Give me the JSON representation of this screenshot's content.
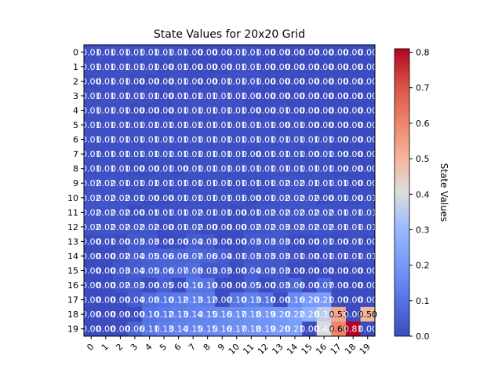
{
  "chart_data": {
    "type": "heatmap",
    "title": "State Values for 20x20 Grid",
    "xlabel": "",
    "ylabel": "",
    "x_categories": [
      "0",
      "1",
      "2",
      "3",
      "4",
      "5",
      "6",
      "7",
      "8",
      "9",
      "10",
      "11",
      "12",
      "13",
      "14",
      "15",
      "16",
      "17",
      "18",
      "19"
    ],
    "y_categories": [
      "0",
      "1",
      "2",
      "3",
      "4",
      "5",
      "6",
      "7",
      "8",
      "9",
      "10",
      "11",
      "12",
      "13",
      "14",
      "15",
      "16",
      "17",
      "18",
      "19"
    ],
    "colormap": "coolwarm",
    "vmin": 0.0,
    "vmax": 0.81,
    "colorbar_label": "State Values",
    "colorbar_ticks": [
      "0.0",
      "0.1",
      "0.2",
      "0.3",
      "0.4",
      "0.5",
      "0.6",
      "0.7",
      "0.8"
    ],
    "annotation_decimals": 2,
    "values": [
      [
        0.01,
        0.01,
        0.01,
        0.01,
        0.01,
        0.01,
        0.01,
        0.0,
        0.0,
        0.0,
        0.01,
        0.01,
        0.0,
        0.0,
        0.0,
        0.0,
        0.0,
        0.0,
        0.0,
        0.0
      ],
      [
        0.01,
        0.01,
        0.01,
        0.01,
        0.01,
        0.0,
        0.01,
        0.0,
        0.0,
        0.0,
        0.01,
        0.01,
        0.0,
        0.0,
        0.0,
        0.0,
        0.0,
        0.0,
        0.0,
        0.0
      ],
      [
        0.0,
        0.01,
        0.01,
        0.0,
        0.0,
        0.0,
        0.01,
        0.0,
        0.0,
        0.01,
        0.01,
        0.01,
        0.0,
        0.0,
        0.0,
        0.0,
        0.0,
        0.0,
        0.0,
        0.0
      ],
      [
        0.01,
        0.01,
        0.01,
        0.01,
        0.01,
        0.0,
        0.01,
        0.01,
        0.01,
        0.01,
        0.01,
        0.0,
        0.0,
        0.0,
        0.0,
        0.0,
        0.0,
        0.0,
        0.0,
        0.0
      ],
      [
        0.01,
        0.01,
        0.01,
        0.0,
        0.0,
        0.0,
        0.01,
        0.01,
        0.01,
        0.01,
        0.01,
        0.0,
        0.0,
        0.01,
        0.0,
        0.0,
        0.0,
        0.0,
        0.0,
        0.0
      ],
      [
        0.01,
        0.01,
        0.01,
        0.01,
        0.01,
        0.01,
        0.01,
        0.01,
        0.01,
        0.01,
        0.01,
        0.01,
        0.01,
        0.0,
        0.01,
        0.0,
        0.0,
        0.0,
        0.0,
        0.0
      ],
      [
        0.01,
        0.01,
        0.01,
        0.01,
        0.01,
        0.01,
        0.01,
        0.01,
        0.01,
        0.01,
        0.01,
        0.01,
        0.01,
        0.01,
        0.01,
        0.01,
        0.01,
        0.0,
        0.0,
        0.0
      ],
      [
        0.01,
        0.01,
        0.01,
        0.01,
        0.01,
        0.01,
        0.01,
        0.01,
        0.01,
        0.01,
        0.01,
        0.0,
        0.01,
        0.01,
        0.01,
        0.0,
        0.01,
        0.0,
        0.0,
        0.0
      ],
      [
        0.01,
        0.01,
        0.01,
        0.0,
        0.0,
        0.01,
        0.0,
        0.01,
        0.01,
        0.01,
        0.01,
        0.01,
        0.01,
        0.01,
        0.01,
        0.01,
        0.01,
        0.0,
        0.0,
        0.0
      ],
      [
        0.02,
        0.02,
        0.01,
        0.01,
        0.01,
        0.01,
        0.01,
        0.01,
        0.01,
        0.01,
        0.01,
        0.01,
        0.01,
        0.02,
        0.02,
        0.01,
        0.01,
        0.01,
        0.0,
        0.0
      ],
      [
        0.02,
        0.02,
        0.02,
        0.01,
        0.0,
        0.0,
        0.01,
        0.01,
        0.01,
        0.01,
        0.01,
        0.0,
        0.01,
        0.02,
        0.02,
        0.02,
        0.0,
        0.01,
        0.0,
        0.01
      ],
      [
        0.02,
        0.02,
        0.02,
        0.0,
        0.01,
        0.01,
        0.01,
        0.02,
        0.01,
        0.01,
        0.0,
        0.01,
        0.02,
        0.02,
        0.02,
        0.02,
        0.02,
        0.01,
        0.01,
        0.01
      ],
      [
        0.02,
        0.02,
        0.02,
        0.02,
        0.02,
        0.0,
        0.01,
        0.02,
        0.0,
        0.0,
        0.0,
        0.02,
        0.02,
        0.03,
        0.02,
        0.02,
        0.02,
        0.01,
        0.01,
        0.01
      ],
      [
        0.0,
        0.01,
        0.0,
        0.03,
        0.03,
        0.0,
        0.0,
        0.04,
        0.03,
        0.0,
        0.0,
        0.03,
        0.03,
        0.03,
        0.0,
        0.0,
        0.01,
        0.0,
        0.01,
        0.0
      ],
      [
        0.0,
        0.0,
        0.02,
        0.04,
        0.05,
        0.06,
        0.06,
        0.07,
        0.06,
        0.04,
        0.01,
        0.03,
        0.03,
        0.03,
        0.01,
        0.0,
        0.01,
        0.01,
        0.01,
        0.01
      ],
      [
        0.0,
        0.0,
        0.03,
        0.04,
        0.05,
        0.06,
        0.07,
        0.08,
        0.03,
        0.03,
        0.0,
        0.04,
        0.03,
        0.03,
        0.0,
        0.0,
        0.0,
        0.0,
        0.0,
        0.0
      ],
      [
        0.0,
        0.0,
        0.02,
        0.03,
        0.0,
        0.05,
        0.0,
        0.1,
        0.1,
        0.0,
        0.0,
        0.05,
        0.0,
        0.03,
        0.06,
        0.0,
        0.07,
        0.0,
        0.0,
        0.0
      ],
      [
        0.0,
        0.0,
        0.0,
        0.04,
        0.08,
        0.1,
        0.12,
        0.13,
        0.12,
        0.0,
        0.1,
        0.13,
        0.1,
        0.0,
        0.16,
        0.2,
        0.21,
        0.0,
        0.0,
        0.0
      ],
      [
        0.0,
        0.0,
        0.0,
        0.0,
        0.1,
        0.12,
        0.13,
        0.14,
        0.15,
        0.16,
        0.17,
        0.18,
        0.19,
        0.2,
        0.22,
        0.28,
        0.36,
        0.53,
        0.0,
        0.5
      ],
      [
        0.0,
        0.0,
        0.0,
        0.06,
        0.11,
        0.13,
        0.14,
        0.15,
        0.15,
        0.16,
        0.17,
        0.18,
        0.19,
        0.2,
        0.21,
        0.0,
        0.4,
        0.6,
        0.81,
        0.0
      ]
    ]
  }
}
